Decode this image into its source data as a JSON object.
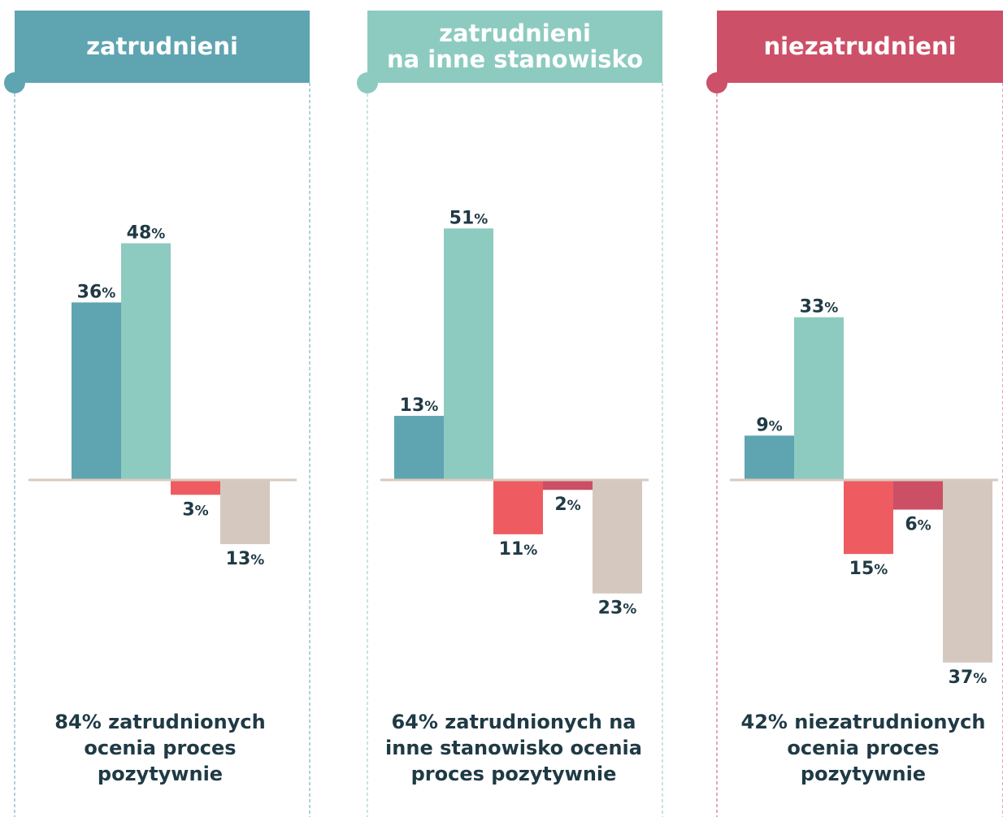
{
  "chart_data": [
    {
      "type": "bar",
      "title": [
        "zatrudnieni"
      ],
      "header_color": "#5fa4b1",
      "values": [
        36,
        48,
        -3,
        -13
      ],
      "value_labels": [
        "36%",
        "48%",
        "3%",
        "13%"
      ],
      "colors": [
        "#5fa4b1",
        "#8dcbc0",
        "#ee5c62",
        "#d5c9bf"
      ],
      "ylim": [
        -40,
        55
      ],
      "note": [
        "84% zatrudnionych",
        "ocenia proces",
        "pozytywnie"
      ]
    },
    {
      "type": "bar",
      "title": [
        "zatrudnieni",
        "na inne stanowisko"
      ],
      "header_color": "#8dcbc0",
      "values": [
        13,
        51,
        -11,
        -2,
        -23
      ],
      "value_labels": [
        "13%",
        "51%",
        "11%",
        "2%",
        "23%"
      ],
      "colors": [
        "#5fa4b1",
        "#8dcbc0",
        "#ee5c62",
        "#cc4f66",
        "#d5c9bf"
      ],
      "ylim": [
        -40,
        55
      ],
      "note": [
        "64% zatrudnionych na",
        "inne stanowisko ocenia",
        "proces pozytywnie"
      ]
    },
    {
      "type": "bar",
      "title": [
        "niezatrudnieni"
      ],
      "header_color": "#cc5068",
      "values": [
        9,
        33,
        -15,
        -6,
        -37
      ],
      "value_labels": [
        "9%",
        "33%",
        "15%",
        "6%",
        "37%"
      ],
      "colors": [
        "#5fa4b1",
        "#8dcbc0",
        "#ee5c62",
        "#cc4f66",
        "#d5c9bf"
      ],
      "ylim": [
        -40,
        55
      ],
      "note": [
        "42% niezatrudnionych",
        "ocenia proces",
        "pozytywnie"
      ]
    }
  ]
}
